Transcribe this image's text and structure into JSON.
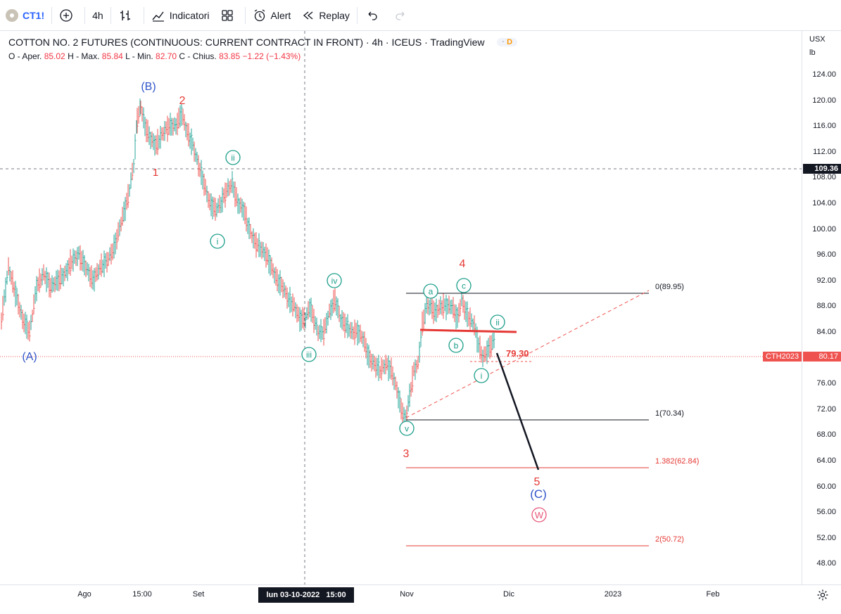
{
  "toolbar": {
    "symbol": "CT1!",
    "interval": "4h",
    "indicators": "Indicatori",
    "alert": "Alert",
    "replay": "Replay"
  },
  "header": {
    "title": "COTTON NO. 2 FUTURES (CONTINUOUS: CURRENT CONTRACT IN FRONT) · 4h · ICEUS · TradingView",
    "badge": "D",
    "ohlc": {
      "o_label": "O - Aper.",
      "o": "85.02",
      "h_label": "H - Max.",
      "h": "85.84",
      "l_label": "L - Min.",
      "l": "82.70",
      "c_label": "C - Chius.",
      "c": "83.85",
      "change": "−1.22 (−1.43%)"
    }
  },
  "price_axis": {
    "currency": "USX",
    "unit": "lb",
    "ticks": [
      "124.00",
      "120.00",
      "116.00",
      "112.00",
      "108.00",
      "104.00",
      "100.00",
      "96.00",
      "92.00",
      "88.00",
      "84.00",
      "80.00",
      "76.00",
      "72.00",
      "68.00",
      "64.00",
      "60.00",
      "56.00",
      "52.00",
      "48.00"
    ],
    "crosshair_label": "109.36",
    "contract_label": "CTH2023",
    "last_price": "80.17"
  },
  "time_axis": {
    "ticks": [
      "Ago",
      "15:00",
      "Set",
      "Nov",
      "Dic",
      "2023",
      "Feb"
    ],
    "crosshair_label": "lun 03-10-2022   15:00"
  },
  "annotations": {
    "fib": [
      "0(89.95)",
      "1(70.34)",
      "1.382(62.84)",
      "2(50.72)"
    ],
    "level": "79.30",
    "waves_red": [
      "1",
      "2",
      "3",
      "4",
      "5"
    ],
    "waves_blue": [
      "(A)",
      "(B)",
      "(C)"
    ],
    "waves_green": [
      "i",
      "ii",
      "iii",
      "iv",
      "v",
      "a",
      "b",
      "c",
      "i",
      "ii"
    ],
    "wave_pink": "W"
  },
  "colors": {
    "up": "#26a69a",
    "down": "#ef5350",
    "wave_red": "#e53935",
    "wave_blue": "#2f54c8",
    "wave_green": "#1b9e8a",
    "wave_pink": "#e8577a",
    "accent": "#2962ff"
  }
}
